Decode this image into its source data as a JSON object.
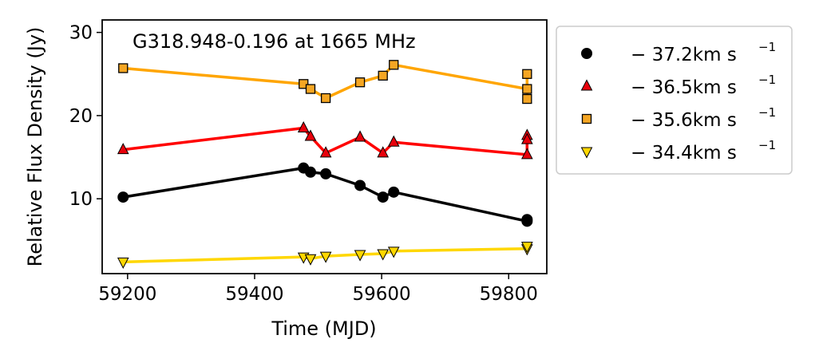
{
  "chart_data": {
    "type": "line",
    "title": "G318.948-0.196 at 1665 MHz",
    "xlabel": "Time (MJD)",
    "ylabel": "Relative Flux Density (Jy)",
    "xlim": [
      59160,
      59860
    ],
    "ylim": [
      1,
      31.5
    ],
    "xticks": [
      59200,
      59400,
      59600,
      59800
    ],
    "yticks": [
      10,
      20,
      30
    ],
    "grid": false,
    "legend_position": "outside-right",
    "series": [
      {
        "name": "−37.2 km s⁻¹",
        "legend_text": "− 37.2km s",
        "legend_sup": "−1",
        "marker": "circle",
        "color": "#000000",
        "line_color": "#000000",
        "x": [
          59193,
          59477,
          59488,
          59512,
          59566,
          59602,
          59619,
          59829,
          59829
        ],
        "y": [
          10.2,
          13.7,
          13.2,
          13.0,
          11.6,
          10.2,
          10.8,
          7.3,
          7.5
        ]
      },
      {
        "name": "−36.5 km s⁻¹",
        "legend_text": "− 36.5km s",
        "legend_sup": "−1",
        "marker": "triangle-up",
        "color": "#e8000b",
        "line_color": "#ff0000",
        "x": [
          59193,
          59477,
          59488,
          59512,
          59566,
          59602,
          59619,
          59829,
          59829,
          59829
        ],
        "y": [
          15.9,
          18.5,
          17.5,
          15.5,
          17.4,
          15.5,
          16.8,
          15.3,
          17.6,
          17.1
        ]
      },
      {
        "name": "−35.6 km s⁻¹",
        "legend_text": "− 35.6km s",
        "legend_sup": "−1",
        "marker": "square",
        "color": "#f5a623",
        "line_color": "#ffa500",
        "x": [
          59193,
          59477,
          59488,
          59512,
          59566,
          59602,
          59619,
          59829,
          59829,
          59829
        ],
        "y": [
          25.7,
          23.8,
          23.2,
          22.1,
          24.0,
          24.8,
          26.1,
          23.2,
          25.0,
          22.0
        ]
      },
      {
        "name": "−34.4 km s⁻¹",
        "legend_text": "− 34.4km s",
        "legend_sup": "−1",
        "marker": "triangle-down",
        "color": "#ffd700",
        "line_color": "#ffd700",
        "x": [
          59193,
          59477,
          59488,
          59512,
          59566,
          59602,
          59619,
          59829,
          59829
        ],
        "y": [
          2.4,
          3.0,
          2.8,
          3.1,
          3.3,
          3.4,
          3.7,
          4.0,
          4.3
        ]
      }
    ]
  }
}
